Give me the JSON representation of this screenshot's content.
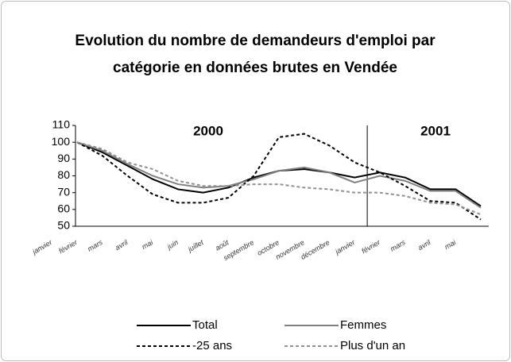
{
  "chart_data": {
    "type": "line",
    "title": [
      "Evolution du nombre de demandeurs d'emploi par",
      "catégorie en données brutes en Vendée"
    ],
    "annotations": [
      "2000",
      "2001"
    ],
    "categories": [
      "janvier",
      "février",
      "mars",
      "avril",
      "mai",
      "juin",
      "juillet",
      "août",
      "septembre",
      "octobre",
      "novembre",
      "décembre",
      "janvier",
      "février",
      "mars",
      "avril",
      "mai"
    ],
    "ylim": [
      50,
      110
    ],
    "yticks": [
      50,
      60,
      70,
      80,
      90,
      100,
      110
    ],
    "series": [
      {
        "name": "Total",
        "color": "#000000",
        "dash": false,
        "values": [
          100,
          94,
          86,
          78,
          72,
          70,
          73,
          79,
          83,
          84,
          82,
          79,
          82,
          79,
          72,
          72,
          62
        ]
      },
      {
        "name": "Femmes",
        "color": "#808080",
        "dash": false,
        "values": [
          100,
          95,
          87,
          80,
          75,
          73,
          74,
          78,
          83,
          85,
          82,
          76,
          80,
          77,
          71,
          71,
          61
        ]
      },
      {
        "name": "-25 ans",
        "color": "#000000",
        "dash": true,
        "values": [
          100,
          92,
          80,
          69,
          64,
          64,
          67,
          80,
          103,
          105,
          98,
          88,
          82,
          74,
          65,
          64,
          54
        ]
      },
      {
        "name": "Plus d'un an",
        "color": "#909090",
        "dash": true,
        "values": [
          100,
          96,
          88,
          84,
          77,
          74,
          74,
          75,
          75,
          73,
          72,
          70,
          70,
          68,
          64,
          63,
          57
        ]
      }
    ]
  }
}
